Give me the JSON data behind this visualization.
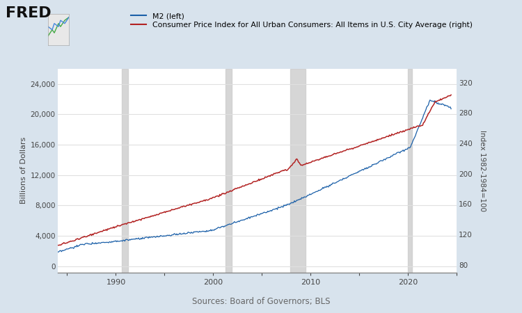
{
  "title_source": "Sources: Board of Governors; BLS",
  "legend_m2": "M2 (left)",
  "legend_cpi": "Consumer Price Index for All Urban Consumers: All Items in U.S. City Average (right)",
  "ylabel_left": "Billions of Dollars",
  "ylabel_right": "Index 1982-1984=100",
  "m2_color": "#1a5fa8",
  "cpi_color": "#b22222",
  "outer_bg": "#d8e3ed",
  "plot_bg": "#ffffff",
  "fred_color": "#101010",
  "ylim_left": [
    -800,
    26000
  ],
  "ylim_right": [
    70,
    338
  ],
  "yticks_left": [
    0,
    4000,
    8000,
    12000,
    16000,
    20000,
    24000
  ],
  "yticks_right": [
    80,
    120,
    160,
    200,
    240,
    280,
    320
  ],
  "recession_bands": [
    [
      1990.58,
      1991.25
    ],
    [
      2001.25,
      2001.92
    ],
    [
      2007.92,
      2009.5
    ],
    [
      2020.0,
      2020.42
    ]
  ],
  "xmin": 1984.0,
  "xmax": 2025.0,
  "xtick_years": [
    1990,
    2000,
    2010,
    2020
  ]
}
